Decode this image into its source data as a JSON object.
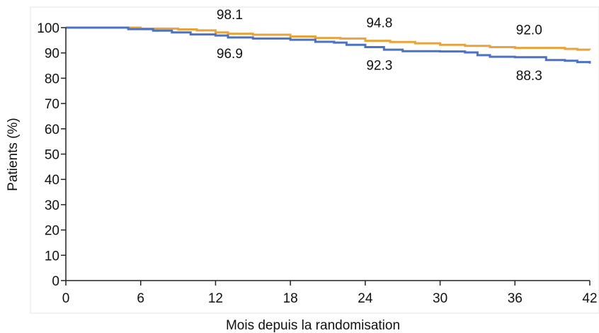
{
  "chart_data": {
    "type": "line",
    "title": "",
    "xlabel": "Mois depuis la randomisation",
    "ylabel": "Patients (%)",
    "xlim": [
      0,
      42
    ],
    "ylim": [
      0,
      100
    ],
    "x_ticks": [
      "0",
      "6",
      "12",
      "18",
      "24",
      "30",
      "36",
      "42"
    ],
    "y_ticks": [
      "0",
      "10",
      "20",
      "30",
      "40",
      "50",
      "60",
      "70",
      "80",
      "90",
      "100"
    ],
    "grid": false,
    "legend": "none",
    "series": [
      {
        "color": "#E8A33D",
        "x": [
          0,
          3,
          6,
          9,
          10.5,
          12,
          13,
          15,
          18,
          20,
          22,
          24,
          26,
          28,
          30,
          32,
          34,
          36,
          38,
          40,
          41,
          42
        ],
        "y": [
          100,
          100,
          99.6,
          99.3,
          98.9,
          98.1,
          97.6,
          97.2,
          96.5,
          95.9,
          95.7,
          94.8,
          94.3,
          93.8,
          93.2,
          92.8,
          92.3,
          92.0,
          92.0,
          91.6,
          91.3,
          91.2
        ]
      },
      {
        "color": "#4C72C4",
        "x": [
          0,
          3,
          5,
          7,
          8.5,
          10,
          12,
          13,
          15,
          18,
          20,
          21.5,
          22.5,
          24,
          25.5,
          27,
          30,
          32,
          33,
          34,
          36,
          37,
          38.5,
          40,
          41,
          42
        ],
        "y": [
          100,
          100,
          99.4,
          98.8,
          98.1,
          97.3,
          96.9,
          96.1,
          95.7,
          95.2,
          94.4,
          94.1,
          93.2,
          92.3,
          91.3,
          90.7,
          90.6,
          90.2,
          89.1,
          88.5,
          88.3,
          88.3,
          87.2,
          86.9,
          86.4,
          85.8
        ]
      }
    ],
    "annotations": [
      {
        "text": "98.1",
        "x": 12,
        "y": 98.1,
        "pos": "above"
      },
      {
        "text": "96.9",
        "x": 12,
        "y": 96.9,
        "pos": "below"
      },
      {
        "text": "94.8",
        "x": 24,
        "y": 94.8,
        "pos": "above"
      },
      {
        "text": "92.3",
        "x": 24,
        "y": 92.3,
        "pos": "below"
      },
      {
        "text": "92.0",
        "x": 36,
        "y": 92.0,
        "pos": "above"
      },
      {
        "text": "88.3",
        "x": 36,
        "y": 88.3,
        "pos": "below"
      }
    ]
  }
}
